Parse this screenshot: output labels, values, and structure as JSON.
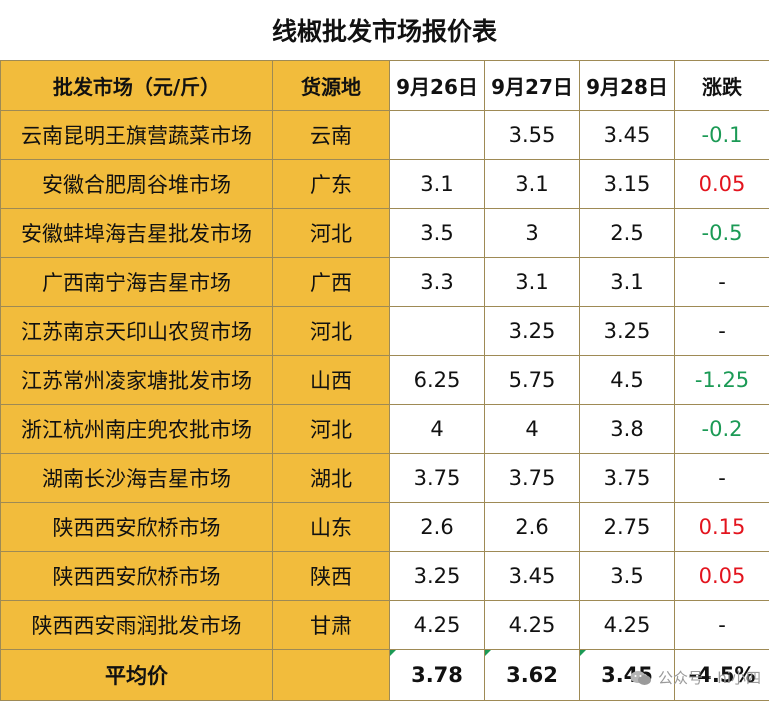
{
  "title": "线椒批发市场报价表",
  "headers": {
    "market": "批发市场（元/斤）",
    "origin": "货源地",
    "d1": "9月26日",
    "d2": "9月27日",
    "d3": "9月28日",
    "change": "涨跌"
  },
  "rows": [
    {
      "market": "云南昆明王旗营蔬菜市场",
      "origin": "云南",
      "d1": "",
      "d2": "3.55",
      "d3": "3.45",
      "change": "-0.1",
      "trend": "down"
    },
    {
      "market": "安徽合肥周谷堆市场",
      "origin": "广东",
      "d1": "3.1",
      "d2": "3.1",
      "d3": "3.15",
      "change": "0.05",
      "trend": "up"
    },
    {
      "market": "安徽蚌埠海吉星批发市场",
      "origin": "河北",
      "d1": "3.5",
      "d2": "3",
      "d3": "2.5",
      "change": "-0.5",
      "trend": "down"
    },
    {
      "market": "广西南宁海吉星市场",
      "origin": "广西",
      "d1": "3.3",
      "d2": "3.1",
      "d3": "3.1",
      "change": "-",
      "trend": "flat"
    },
    {
      "market": "江苏南京天印山农贸市场",
      "origin": "河北",
      "d1": "",
      "d2": "3.25",
      "d3": "3.25",
      "change": "-",
      "trend": "flat"
    },
    {
      "market": "江苏常州凌家塘批发市场",
      "origin": "山西",
      "d1": "6.25",
      "d2": "5.75",
      "d3": "4.5",
      "change": "-1.25",
      "trend": "down"
    },
    {
      "market": "浙江杭州南庄兜农批市场",
      "origin": "河北",
      "d1": "4",
      "d2": "4",
      "d3": "3.8",
      "change": "-0.2",
      "trend": "down"
    },
    {
      "market": "湖南长沙海吉星市场",
      "origin": "湖北",
      "d1": "3.75",
      "d2": "3.75",
      "d3": "3.75",
      "change": "-",
      "trend": "flat"
    },
    {
      "market": "陕西西安欣桥市场",
      "origin": "山东",
      "d1": "2.6",
      "d2": "2.6",
      "d3": "2.75",
      "change": "0.15",
      "trend": "up"
    },
    {
      "market": "陕西西安欣桥市场",
      "origin": "陕西",
      "d1": "3.25",
      "d2": "3.45",
      "d3": "3.5",
      "change": "0.05",
      "trend": "up"
    },
    {
      "market": "陕西西安雨润批发市场",
      "origin": "甘肃",
      "d1": "4.25",
      "d2": "4.25",
      "d3": "4.25",
      "change": "-",
      "trend": "flat"
    }
  ],
  "average": {
    "label": "平均价",
    "d1": "3.78",
    "d2": "3.62",
    "d3": "3.45",
    "change": "-4.5%"
  },
  "watermark": {
    "text": "公众号 · hi小四",
    "icon": "wechat-icon"
  },
  "colors": {
    "gold": "#f2bc3c",
    "up": "#e3141e",
    "down": "#1b9a55"
  }
}
